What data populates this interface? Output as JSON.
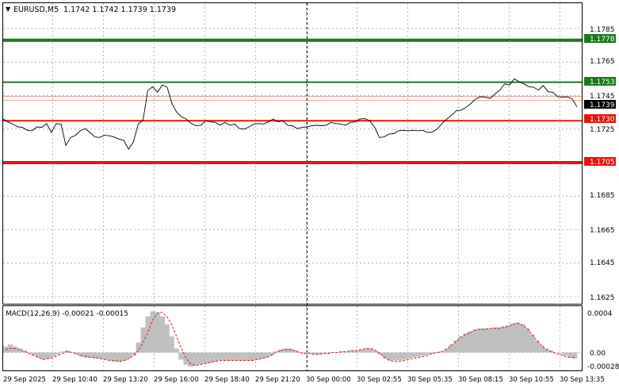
{
  "header": {
    "menu_arrow": "▼",
    "symbol": "EURUSD,M5",
    "ohlc": "1.1742 1.1742 1.1739 1.1739"
  },
  "price_axis": {
    "ticks": [
      "1.1785",
      "1.1765",
      "1.1745",
      "1.1725",
      "1.1685",
      "1.1665",
      "1.1645",
      "1.1625"
    ],
    "current_price": "1.1739"
  },
  "levels": [
    {
      "id": "res2",
      "label": "1.1778",
      "price": 1.1778,
      "color": "#1a7a1a"
    },
    {
      "id": "res1",
      "label": "1.1753",
      "price": 1.1753,
      "color": "#1a7a1a"
    },
    {
      "id": "sup1",
      "label": "1.1730",
      "price": 1.173,
      "color": "#e8160c"
    },
    {
      "id": "sup2",
      "label": "1.1705",
      "price": 1.1705,
      "color": "#e8160c"
    }
  ],
  "macd": {
    "title": "MACD(12,26,9) -0.00021 -0.00015",
    "axis_ticks": [
      "0.0004",
      "0.00",
      "-0.00028"
    ]
  },
  "time_axis": {
    "labels": [
      "29 Sep 2025",
      "29 Sep 10:40",
      "29 Sep 13:20",
      "29 Sep 16:00",
      "29 Sep 18:40",
      "29 Sep 21:20",
      "30 Sep 00:00",
      "30 Sep 02:55",
      "30 Sep 05:35",
      "30 Sep 08:15",
      "30 Sep 10:55",
      "30 Sep 13:35"
    ]
  },
  "chart_data": {
    "type": "line",
    "series": [
      {
        "values": [
          1.1731,
          1.173,
          1.1728,
          1.1727,
          1.1726,
          1.1725,
          1.1724,
          1.1727,
          1.1726,
          1.1729,
          1.1723,
          1.1729,
          1.1728,
          1.1716,
          1.172,
          1.1722,
          1.1724,
          1.1726,
          1.1723,
          1.1721,
          1.172,
          1.1722,
          1.1721,
          1.1721,
          1.1719,
          1.1719,
          1.1713,
          1.1718,
          1.1728,
          1.1731,
          1.1748,
          1.1751,
          1.1747,
          1.1752,
          1.175,
          1.1741,
          1.1735,
          1.1733,
          1.1731,
          1.1729,
          1.1727,
          1.1728,
          1.173,
          1.173,
          1.1729,
          1.1728,
          1.1729,
          1.1728,
          1.1728,
          1.1726,
          1.1725,
          1.1727,
          1.1728,
          1.1729,
          1.1728,
          1.173,
          1.1731,
          1.173,
          1.173,
          1.1728,
          1.1727,
          1.1726,
          1.1726,
          1.1727,
          1.1727,
          1.1728,
          1.1727,
          1.1728,
          1.1729,
          1.1729,
          1.1728,
          1.1728,
          1.1729,
          1.173,
          1.1731,
          1.1732,
          1.173,
          1.1727,
          1.172,
          1.1721,
          1.1722,
          1.1723,
          1.1724,
          1.1725,
          1.1724,
          1.1725,
          1.1724,
          1.1725,
          1.1723,
          1.1724,
          1.1725,
          1.1729,
          1.1731,
          1.1734,
          1.1736,
          1.1737,
          1.1738,
          1.1741,
          1.1743,
          1.1745,
          1.1744,
          1.1744,
          1.1746,
          1.1749,
          1.1752,
          1.1752,
          1.1755,
          1.1754,
          1.1752,
          1.1751,
          1.175,
          1.1749,
          1.1751,
          1.1748,
          1.1747,
          1.1745,
          1.1744,
          1.1745,
          1.1743,
          1.1739
        ]
      }
    ],
    "ylim": [
      1.1615,
      1.1795
    ],
    "macd_histogram": [
      6,
      8,
      6,
      4,
      2,
      -1,
      -3,
      -5,
      -7,
      -6,
      -4,
      -2,
      1,
      2,
      0,
      -2,
      -4,
      -5,
      -5,
      -6,
      -6,
      -7,
      -8,
      -9,
      -9,
      -8,
      -6,
      -3,
      10,
      25,
      36,
      41,
      40,
      36,
      28,
      16,
      4,
      -7,
      -12,
      -14,
      -13,
      -12,
      -11,
      -10,
      -9,
      -8,
      -8,
      -8,
      -8,
      -8,
      -8,
      -8,
      -8,
      -7,
      -6,
      -5,
      -3,
      1,
      3,
      4,
      4,
      2,
      0,
      -1,
      -1,
      -2,
      -2,
      -1,
      -1,
      0,
      0,
      1,
      1,
      2,
      2,
      3,
      4,
      4,
      2,
      -2,
      -6,
      -8,
      -8,
      -8,
      -7,
      -6,
      -5,
      -4,
      -3,
      -2,
      -1,
      0,
      1,
      4,
      8,
      12,
      16,
      19,
      21,
      23,
      24,
      24,
      24,
      25,
      25,
      26,
      27,
      29,
      30,
      28,
      24,
      18,
      12,
      7,
      4,
      2,
      0,
      -1,
      -3,
      -5,
      -6
    ],
    "macd_signal": [
      3,
      4,
      4,
      3,
      1,
      -1,
      -3,
      -5,
      -7,
      -6,
      -5,
      -3,
      -1,
      1,
      0,
      -1,
      -3,
      -4,
      -5,
      -5,
      -6,
      -7,
      -8,
      -8,
      -9,
      -8,
      -6,
      -3,
      2,
      10,
      20,
      32,
      39,
      40,
      36,
      28,
      17,
      5,
      -5,
      -11,
      -13,
      -12,
      -11,
      -10,
      -9,
      -8,
      -8,
      -8,
      -8,
      -8,
      -8,
      -8,
      -8,
      -7,
      -6,
      -5,
      -3,
      0,
      2,
      3,
      3,
      2,
      0,
      -1,
      -1,
      -2,
      -2,
      -1,
      -1,
      0,
      0,
      1,
      1,
      2,
      2,
      3,
      4,
      4,
      2,
      -1,
      -5,
      -8,
      -9,
      -9,
      -8,
      -7,
      -6,
      -5,
      -4,
      -3,
      -1,
      0,
      1,
      3,
      7,
      11,
      15,
      18,
      20,
      22,
      23,
      23,
      24,
      24,
      24,
      25,
      26,
      28,
      29,
      27,
      24,
      18,
      12,
      7,
      3,
      1,
      -1,
      -2,
      -4,
      -5,
      -5
    ]
  }
}
